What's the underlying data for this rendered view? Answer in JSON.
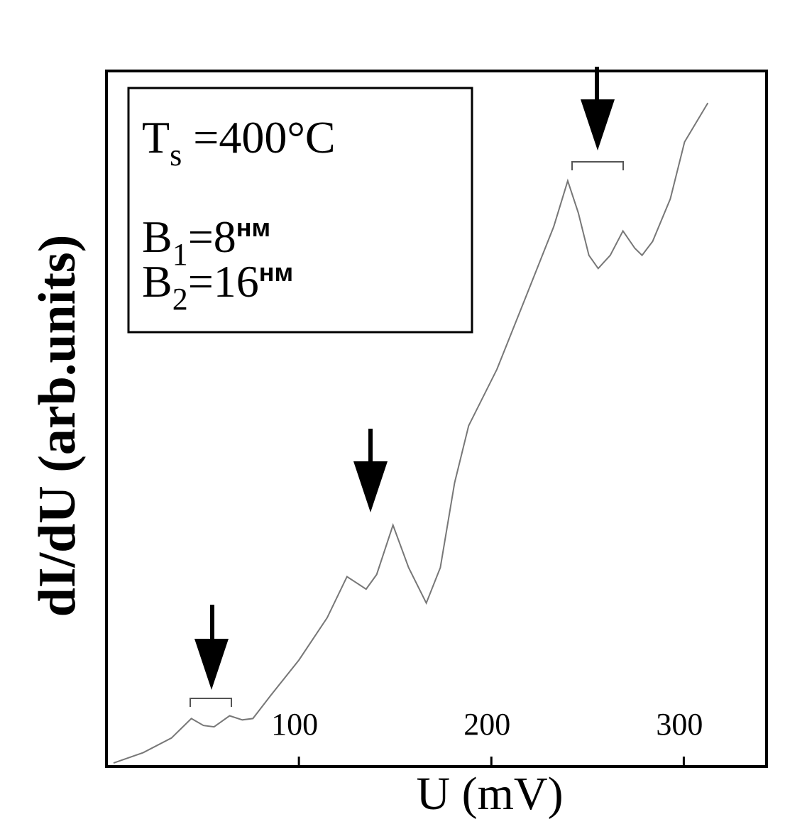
{
  "chart_data": {
    "type": "line",
    "x_label": "U (mV)",
    "y_label": "dI/dU (arb.units)",
    "x": [
      3.7,
      19.1,
      33.8,
      44.1,
      50.4,
      55.9,
      64.0,
      70.6,
      76.1,
      85.3,
      100,
      114.7,
      125.0,
      129.4,
      134.9,
      140.4,
      148.9,
      157.0,
      166.2,
      173.5,
      180.9,
      188.2,
      202.9,
      217.6,
      232.4,
      239.7,
      245.2,
      250.7,
      255.5,
      261.8,
      268.4,
      274.6,
      278.3,
      283.8,
      293.0,
      300.4,
      312.5
    ],
    "values": [
      0.5,
      2.0,
      4.1,
      6.9,
      5.9,
      5.7,
      7.3,
      6.7,
      6.9,
      10.2,
      15.3,
      21.4,
      27.3,
      26.5,
      25.5,
      27.6,
      34.7,
      28.6,
      23.5,
      28.6,
      40.8,
      49.0,
      57.1,
      67.3,
      77.6,
      84.2,
      79.6,
      73.5,
      71.6,
      73.5,
      77.0,
      74.5,
      73.5,
      75.5,
      81.6,
      89.8,
      95.4
    ],
    "color": "#777777",
    "xlim": [
      0,
      343
    ],
    "xticks": [
      100,
      200,
      300
    ],
    "ylim": [
      0,
      100
    ],
    "annotations": [
      {
        "base": "T",
        "sub": "s",
        "text": " =400°C"
      },
      {
        "base": "B",
        "sub": "1",
        "text": "=8",
        "sup": "нм"
      },
      {
        "base": "B",
        "sub": "2",
        "text": "=16",
        "sup": "нм"
      }
    ]
  }
}
